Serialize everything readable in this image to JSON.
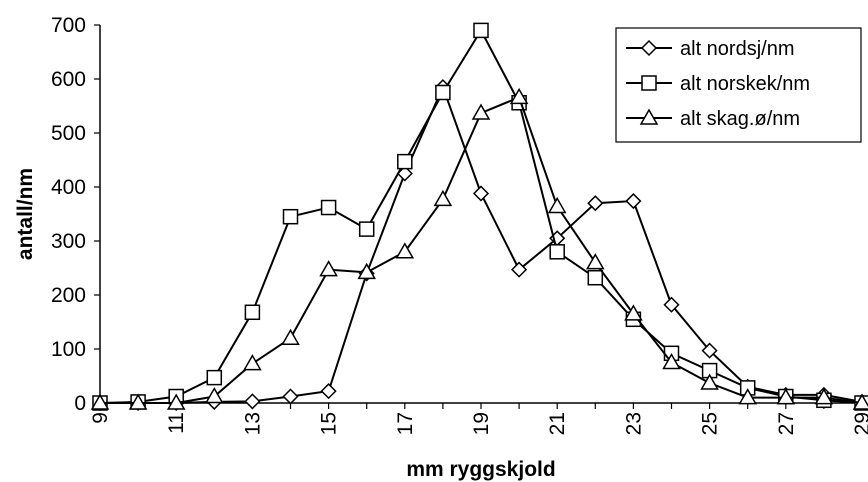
{
  "chart_data": {
    "type": "line",
    "xlabel": "mm ryggskjold",
    "ylabel": "antall/nm",
    "x": [
      9,
      10,
      11,
      12,
      13,
      14,
      15,
      16,
      17,
      18,
      19,
      20,
      21,
      22,
      23,
      24,
      25,
      26,
      27,
      28,
      29
    ],
    "x_tick_labels": [
      "9",
      "11",
      "13",
      "15",
      "17",
      "19",
      "21",
      "23",
      "25",
      "27",
      "29"
    ],
    "y_tick_labels": [
      "0",
      "100",
      "200",
      "300",
      "400",
      "500",
      "600",
      "700"
    ],
    "xlim": [
      9,
      29
    ],
    "ylim": [
      0,
      700
    ],
    "grid": false,
    "legend_position": "top-right",
    "series": [
      {
        "name": "alt nordsj/nm",
        "marker": "diamond",
        "color": "#000000",
        "values": [
          0,
          0,
          0,
          2,
          3,
          12,
          22,
          240,
          425,
          585,
          388,
          247,
          305,
          370,
          374,
          182,
          97,
          30,
          15,
          15,
          2
        ]
      },
      {
        "name": "alt norskek/nm",
        "marker": "square",
        "color": "#000000",
        "values": [
          0,
          2,
          12,
          47,
          168,
          345,
          362,
          322,
          447,
          575,
          690,
          556,
          280,
          232,
          155,
          92,
          60,
          28,
          12,
          5,
          0
        ]
      },
      {
        "name": "alt skag.ø/nm",
        "marker": "triangle",
        "color": "#000000",
        "values": [
          0,
          0,
          0,
          12,
          73,
          120,
          247,
          242,
          280,
          377,
          537,
          566,
          364,
          260,
          165,
          75,
          37,
          10,
          10,
          10,
          0
        ]
      }
    ]
  }
}
